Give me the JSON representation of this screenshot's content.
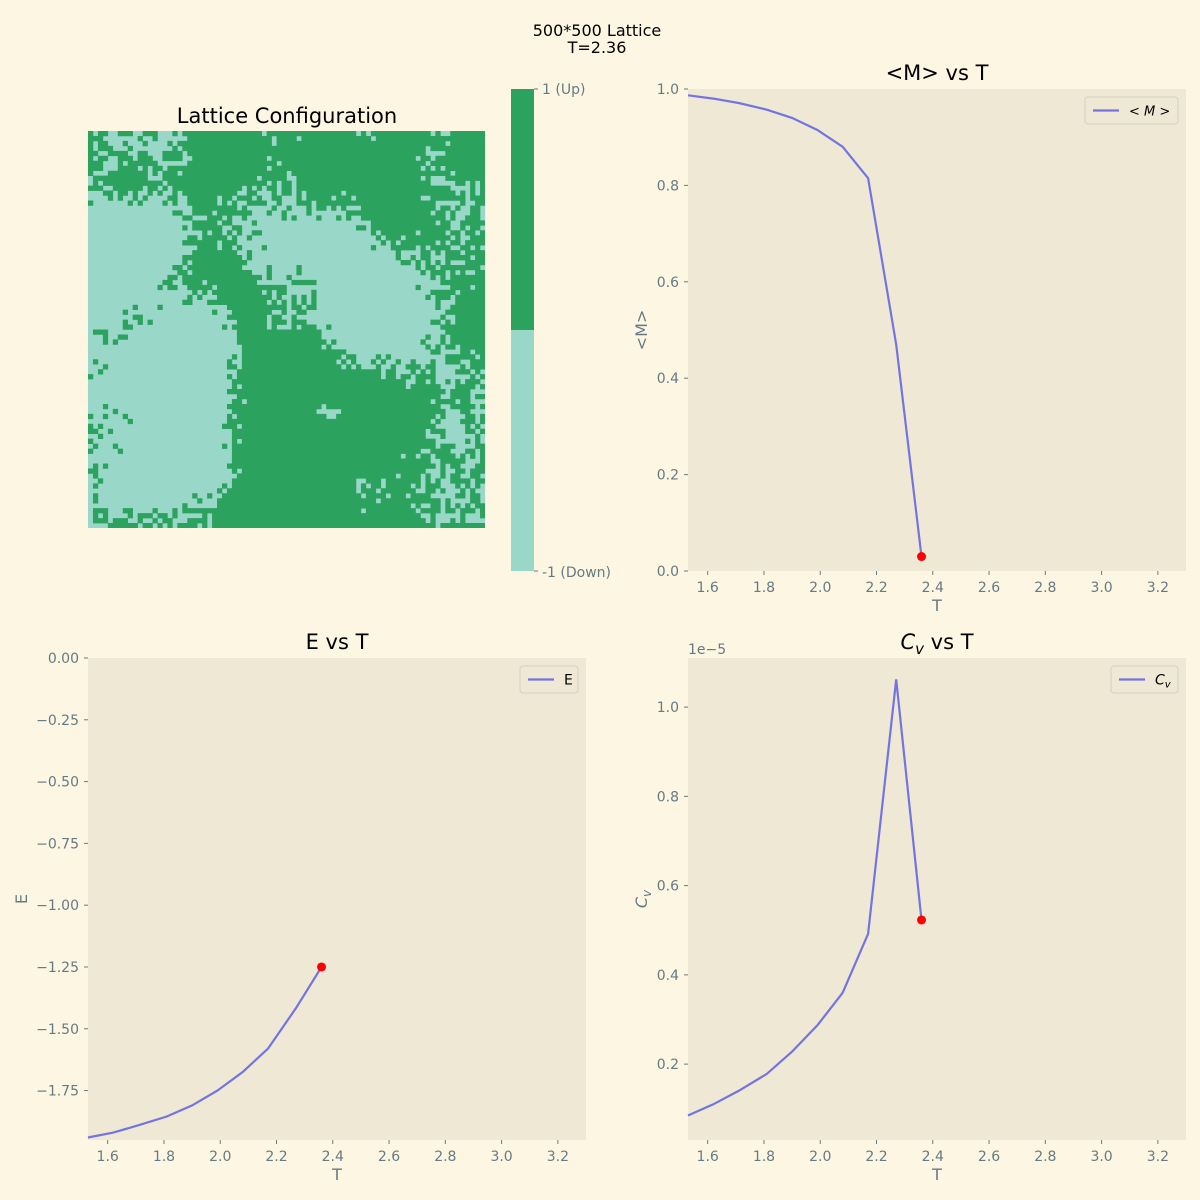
{
  "figure": {
    "suptitle_line1": "500*500 Lattice",
    "suptitle_line2": "T=2.36",
    "background": "#fdf6e3",
    "axes_background": "#eee8d5",
    "tick_color": "#657b83",
    "line_color": "#7474e0",
    "marker_color": "#ff0000"
  },
  "lattice": {
    "title": "Lattice Configuration",
    "size": 500,
    "up_color": "#2ca25f",
    "down_color": "#99d8c9",
    "colorbar_ticks": [
      "1 (Up)",
      "-1 (Down)"
    ]
  },
  "chart_data": [
    {
      "type": "line",
      "id": "magnetization",
      "title": "<M> vs T",
      "xlabel": "T",
      "ylabel": "<M>",
      "legend": "< M >",
      "legend_position": "top-right",
      "xlim": [
        1.53,
        3.3
      ],
      "ylim": [
        0.0,
        1.0
      ],
      "xticks": [
        1.6,
        1.8,
        2.0,
        2.2,
        2.4,
        2.6,
        2.8,
        3.0,
        3.2
      ],
      "yticks": [
        0.0,
        0.2,
        0.4,
        0.6,
        0.8,
        1.0
      ],
      "ytick_labels": [
        "0.0",
        "0.2",
        "0.4",
        "0.6",
        "0.8",
        "1.0"
      ],
      "x": [
        1.53,
        1.62,
        1.71,
        1.81,
        1.9,
        1.99,
        2.08,
        2.17,
        2.27,
        2.36
      ],
      "y": [
        0.987,
        0.98,
        0.971,
        0.957,
        0.94,
        0.915,
        0.88,
        0.815,
        0.47,
        0.03
      ],
      "highlight": {
        "x": 2.36,
        "y": 0.03
      }
    },
    {
      "type": "line",
      "id": "energy",
      "title": "E vs T",
      "xlabel": "T",
      "ylabel": "E",
      "legend": "E",
      "legend_position": "top-right",
      "xlim": [
        1.53,
        3.3
      ],
      "ylim": [
        -1.95,
        0.0
      ],
      "xticks": [
        1.6,
        1.8,
        2.0,
        2.2,
        2.4,
        2.6,
        2.8,
        3.0,
        3.2
      ],
      "yticks": [
        0.0,
        -0.25,
        -0.5,
        -0.75,
        -1.0,
        -1.25,
        -1.5,
        -1.75
      ],
      "ytick_labels": [
        "0.00",
        "−0.25",
        "−0.50",
        "−0.75",
        "−1.00",
        "−1.25",
        "−1.50",
        "−1.75"
      ],
      "x": [
        1.53,
        1.62,
        1.71,
        1.81,
        1.9,
        1.99,
        2.08,
        2.17,
        2.27,
        2.36
      ],
      "y": [
        -1.94,
        -1.92,
        -1.89,
        -1.855,
        -1.81,
        -1.75,
        -1.675,
        -1.58,
        -1.415,
        -1.25
      ],
      "highlight": {
        "x": 2.36,
        "y": -1.25
      }
    },
    {
      "type": "line",
      "id": "heat_capacity",
      "title": "C_v vs T",
      "xlabel": "T",
      "ylabel": "C_v",
      "legend": "C_v",
      "legend_position": "top-right",
      "scale_label": "1e−5",
      "xlim": [
        1.53,
        3.3
      ],
      "ylim": [
        0.03,
        1.11
      ],
      "xticks": [
        1.6,
        1.8,
        2.0,
        2.2,
        2.4,
        2.6,
        2.8,
        3.0,
        3.2
      ],
      "yticks": [
        0.2,
        0.4,
        0.6,
        0.8,
        1.0
      ],
      "ytick_labels": [
        "0.2",
        "0.4",
        "0.6",
        "0.8",
        "1.0"
      ],
      "x": [
        1.53,
        1.62,
        1.71,
        1.81,
        1.9,
        1.99,
        2.08,
        2.17,
        2.27,
        2.36
      ],
      "y": [
        0.085,
        0.11,
        0.14,
        0.178,
        0.228,
        0.287,
        0.36,
        0.492,
        1.062,
        0.523
      ],
      "highlight": {
        "x": 2.36,
        "y": 0.523
      }
    }
  ]
}
